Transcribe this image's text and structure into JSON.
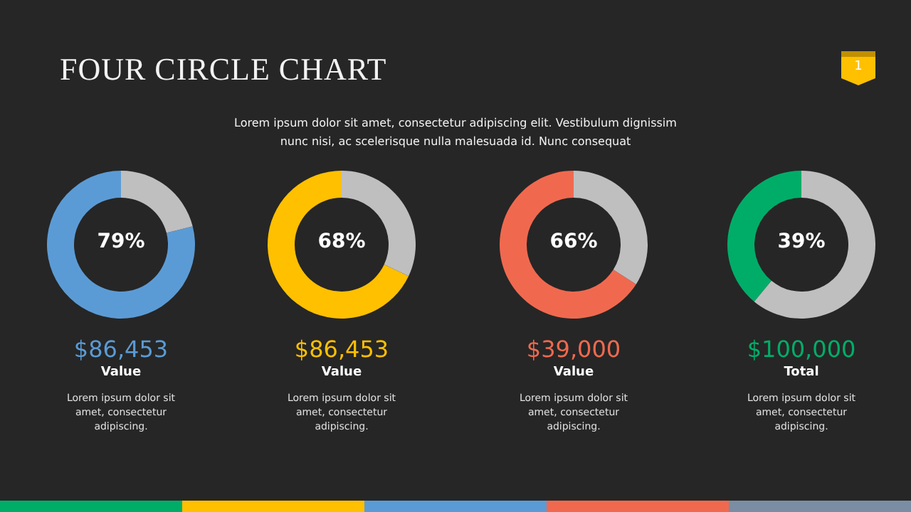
{
  "chart_data": [
    {
      "type": "donut",
      "title": "FOUR CIRCLE CHART",
      "subtitle": "Lorem ipsum dolor sit amet, consectetur adipiscing elit. Vestibulum dignissim nunc nisi, ac scelerisque nulla malesuada id. Nunc consequat",
      "categories": [
        null,
        null
      ],
      "values": [
        79,
        21
      ],
      "colors": [
        "#5b9bd5",
        "#bfbfbf"
      ],
      "value_labels": [
        "79%",
        null
      ],
      "annotations": [
        "$86,453",
        "Value",
        "Lorem ipsum dolor sit amet, consectetur adipiscing.",
        "1"
      ]
    },
    {
      "type": "donut",
      "categories": [
        null,
        null
      ],
      "values": [
        68,
        32
      ],
      "colors": [
        "#ffc000",
        "#bfbfbf"
      ],
      "value_labels": [
        "68%",
        null
      ],
      "annotations": [
        "$86,453",
        "Value",
        "Lorem ipsum dolor sit amet, consectetur adipiscing."
      ]
    },
    {
      "type": "donut",
      "categories": [
        null,
        null
      ],
      "values": [
        66,
        34
      ],
      "colors": [
        "#f0694f",
        "#bfbfbf"
      ],
      "value_labels": [
        "66%",
        null
      ],
      "annotations": [
        "$39,000",
        "Value",
        "Lorem ipsum dolor sit amet, consectetur adipiscing."
      ]
    },
    {
      "type": "donut",
      "categories": [
        null,
        null
      ],
      "values": [
        39,
        61
      ],
      "colors": [
        "#00ad68",
        "#bfbfbf"
      ],
      "value_labels": [
        "39%",
        null
      ],
      "annotations": [
        "$100,000",
        "Total",
        "Lorem ipsum dolor sit amet, consectetur adipiscing."
      ]
    }
  ]
}
